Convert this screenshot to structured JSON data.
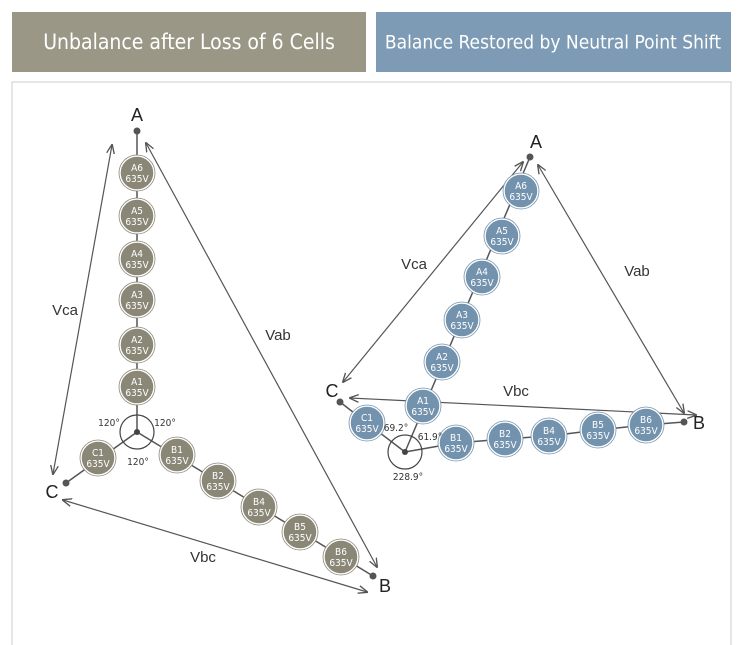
{
  "left": {
    "title": "Unbalance after Loss of 6 Cells",
    "vertices": [
      "A",
      "B",
      "C"
    ],
    "lines": [
      "Vab",
      "Vbc",
      "Vca"
    ],
    "cells": [
      {
        "name": "A6",
        "voltage": "635V"
      },
      {
        "name": "A5",
        "voltage": "635V"
      },
      {
        "name": "A4",
        "voltage": "635V"
      },
      {
        "name": "A3",
        "voltage": "635V"
      },
      {
        "name": "A2",
        "voltage": "635V"
      },
      {
        "name": "A1",
        "voltage": "635V"
      },
      {
        "name": "C1",
        "voltage": "635V"
      },
      {
        "name": "B1",
        "voltage": "635V"
      },
      {
        "name": "B2",
        "voltage": "635V"
      },
      {
        "name": "B4",
        "voltage": "635V"
      },
      {
        "name": "B5",
        "voltage": "635V"
      },
      {
        "name": "B6",
        "voltage": "635V"
      }
    ],
    "angles": [
      "120°",
      "120°",
      "120°"
    ]
  },
  "right": {
    "title": "Balance Restored by Neutral Point Shift",
    "vertices": [
      "A",
      "B",
      "C"
    ],
    "lines": [
      "Vab",
      "Vbc",
      "Vca"
    ],
    "cells": [
      {
        "name": "A6",
        "voltage": "635V"
      },
      {
        "name": "A5",
        "voltage": "635V"
      },
      {
        "name": "A4",
        "voltage": "635V"
      },
      {
        "name": "A3",
        "voltage": "635V"
      },
      {
        "name": "A2",
        "voltage": "635V"
      },
      {
        "name": "A1",
        "voltage": "635V"
      },
      {
        "name": "C1",
        "voltage": "635V"
      },
      {
        "name": "B1",
        "voltage": "635V"
      },
      {
        "name": "B2",
        "voltage": "635V"
      },
      {
        "name": "B4",
        "voltage": "635V"
      },
      {
        "name": "B5",
        "voltage": "635V"
      },
      {
        "name": "B6",
        "voltage": "635V"
      }
    ],
    "angles": [
      "69.2°",
      "61.9°",
      "228.9°"
    ]
  }
}
